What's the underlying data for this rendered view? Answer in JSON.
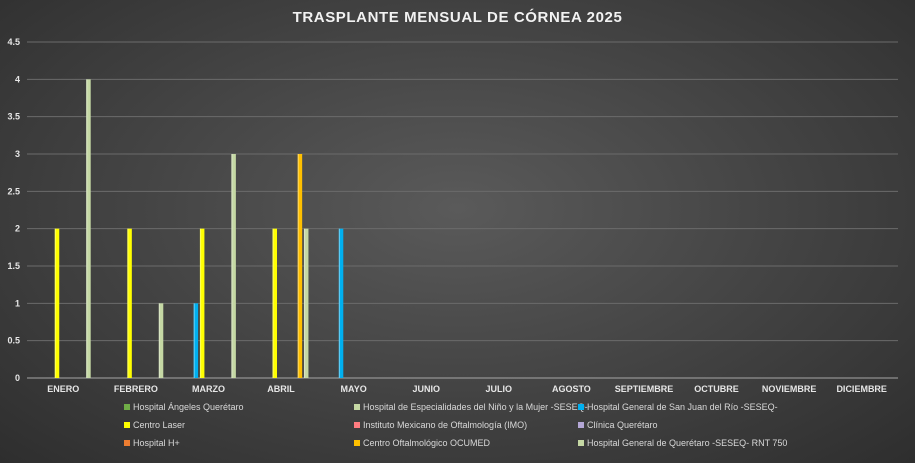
{
  "chart_data": {
    "type": "bar",
    "title": "TRASPLANTE MENSUAL DE CÓRNEA 2025",
    "categories": [
      "ENERO",
      "FEBRERO",
      "MARZO",
      "ABRIL",
      "MAYO",
      "JUNIO",
      "JULIO",
      "AGOSTO",
      "SEPTIEMBRE",
      "OCTUBRE",
      "NOVIEMBRE",
      "DICIEMBRE"
    ],
    "ylim": [
      0,
      4.5
    ],
    "yticks": [
      "0",
      "0.5",
      "1",
      "1.5",
      "2",
      "2.5",
      "3",
      "3.5",
      "4",
      "4.5"
    ],
    "grid": true,
    "legend_position": "bottom",
    "series": [
      {
        "name": "Hospital Ángeles Querétaro",
        "color": "#70ad47",
        "values": [
          0,
          0,
          0,
          0,
          0,
          0,
          0,
          0,
          0,
          0,
          0,
          0
        ]
      },
      {
        "name": "Hospital de Especialidades del Niño y la Mujer -SESEQ-",
        "color": "#c5d8a4",
        "values": [
          0,
          0,
          0,
          0,
          0,
          0,
          0,
          0,
          0,
          0,
          0,
          0
        ]
      },
      {
        "name": "Hospital General de San Juan del Río -SESEQ-",
        "color": "#00b0f0",
        "values": [
          0,
          0,
          1,
          0,
          2,
          0,
          0,
          0,
          0,
          0,
          0,
          0
        ]
      },
      {
        "name": "Centro Laser",
        "color": "#ffff00",
        "values": [
          2,
          2,
          2,
          2,
          0,
          0,
          0,
          0,
          0,
          0,
          0,
          0
        ]
      },
      {
        "name": "Instituto Mexicano de Oftalmología (IMO)",
        "color": "#ff7c80",
        "values": [
          0,
          0,
          0,
          0,
          0,
          0,
          0,
          0,
          0,
          0,
          0,
          0
        ]
      },
      {
        "name": "Clínica Querétaro",
        "color": "#b4a7d6",
        "values": [
          0,
          0,
          0,
          0,
          0,
          0,
          0,
          0,
          0,
          0,
          0,
          0
        ]
      },
      {
        "name": "Hospital H+",
        "color": "#ed7d31",
        "values": [
          0,
          0,
          0,
          0,
          0,
          0,
          0,
          0,
          0,
          0,
          0,
          0
        ]
      },
      {
        "name": "Centro Oftalmológico OCUMED",
        "color": "#ffc000",
        "values": [
          0,
          0,
          0,
          3,
          0,
          0,
          0,
          0,
          0,
          0,
          0,
          0
        ]
      },
      {
        "name": "Hospital General de Querétaro -SESEQ- RNT 750",
        "color": "#c5d8a4",
        "values": [
          4,
          1,
          3,
          2,
          0,
          0,
          0,
          0,
          0,
          0,
          0,
          0
        ]
      }
    ]
  }
}
